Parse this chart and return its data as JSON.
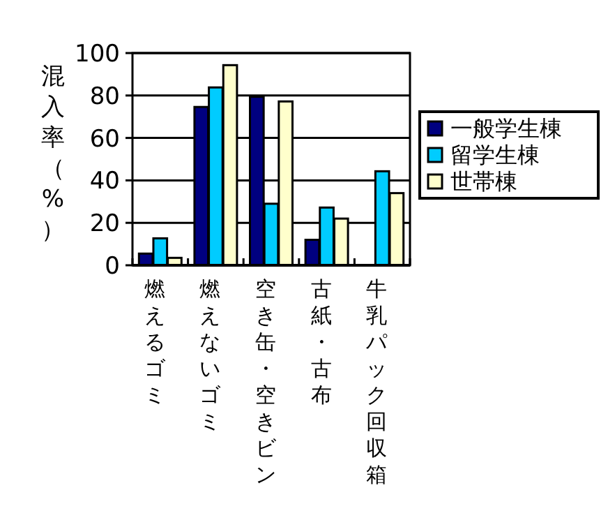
{
  "chart_data": {
    "type": "bar",
    "ylabel": "混入率（%）",
    "categories": [
      "燃えるゴミ",
      "燃えないゴミ",
      "空き缶・空きビン",
      "古紙・古布",
      "牛乳パック回収箱"
    ],
    "series": [
      {
        "name": "一般学生棟",
        "color": "#000080",
        "values": [
          5.5,
          74.6,
          79.4,
          12,
          0
        ]
      },
      {
        "name": "留学生棟",
        "color": "#00ccff",
        "values": [
          12.7,
          83.8,
          29,
          27.2,
          44.3
        ]
      },
      {
        "name": "世帯棟",
        "color": "#ffffcc",
        "values": [
          3.5,
          94.3,
          77.2,
          22,
          34
        ]
      }
    ],
    "ylim": [
      0,
      100
    ],
    "yticks": [
      0,
      20,
      40,
      60,
      80,
      100
    ],
    "grid": "y",
    "legend": "right"
  }
}
